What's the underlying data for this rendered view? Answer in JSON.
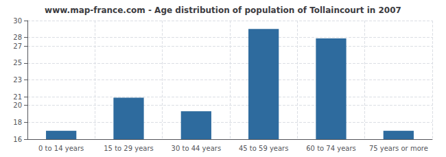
{
  "chart_data": {
    "type": "bar",
    "title": "www.map-france.com - Age distribution of population of Tollaincourt in 2007",
    "categories": [
      "0 to 14 years",
      "15 to 29 years",
      "30 to 44 years",
      "45 to 59 years",
      "60 to 74 years",
      "75 years or more"
    ],
    "values": [
      17.0,
      20.9,
      19.3,
      29.0,
      27.9,
      17.0
    ],
    "color": "#2e6b9e",
    "ylim": [
      16,
      30
    ],
    "yticks": [
      16,
      18,
      20,
      21,
      23,
      25,
      27,
      28,
      30
    ],
    "grid": true
  }
}
